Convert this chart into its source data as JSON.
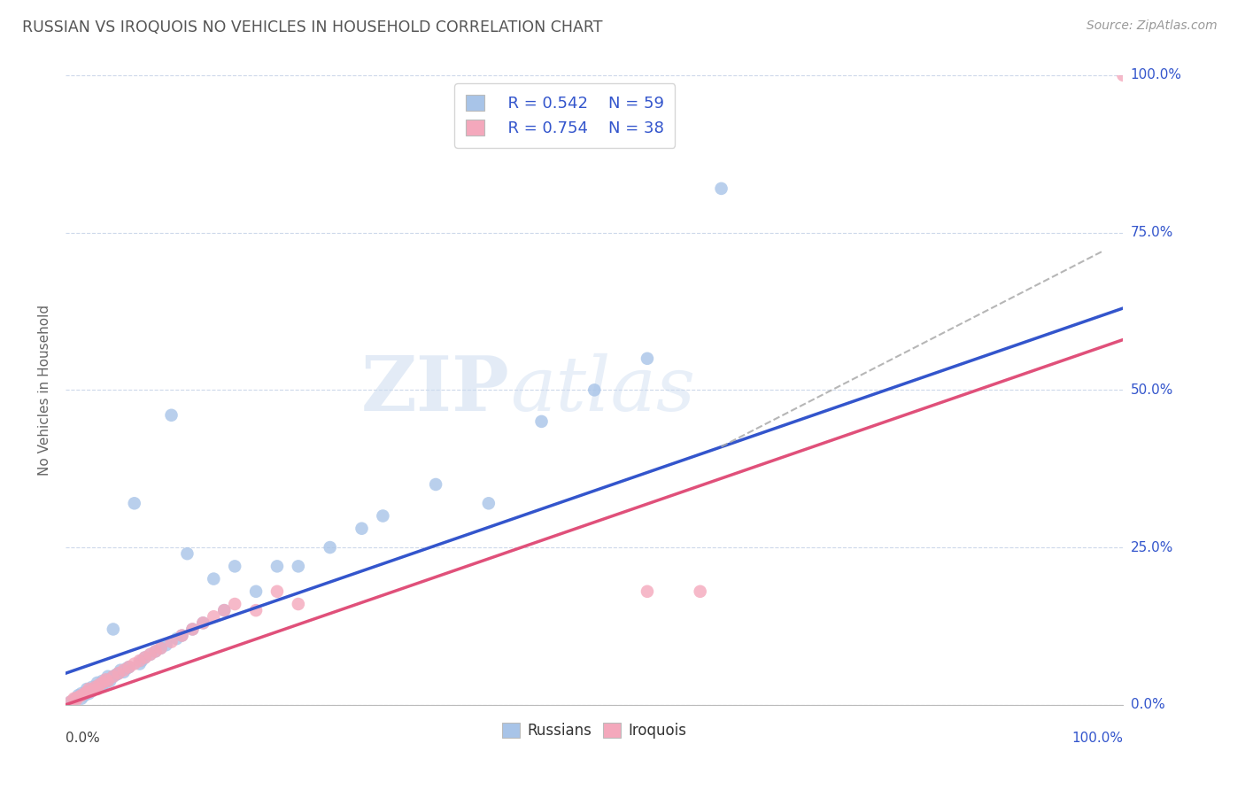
{
  "title": "RUSSIAN VS IROQUOIS NO VEHICLES IN HOUSEHOLD CORRELATION CHART",
  "source": "Source: ZipAtlas.com",
  "ylabel": "No Vehicles in Household",
  "xlim": [
    0,
    1.0
  ],
  "ylim": [
    0,
    1.0
  ],
  "ytick_labels": [
    "0.0%",
    "25.0%",
    "50.0%",
    "75.0%",
    "100.0%"
  ],
  "ytick_positions": [
    0.0,
    0.25,
    0.5,
    0.75,
    1.0
  ],
  "russian_color": "#a8c4e8",
  "iroquois_color": "#f4a8bc",
  "russian_line_color": "#3355cc",
  "iroquois_line_color": "#e0507a",
  "trend_dashed_color": "#aaaaaa",
  "watermark_zip": "ZIP",
  "watermark_atlas": "atlas",
  "legend_r_russian": "R = 0.542",
  "legend_n_russian": "N = 59",
  "legend_r_iroquois": "R = 0.754",
  "legend_n_iroquois": "N = 38",
  "background_color": "#ffffff",
  "grid_color": "#c8d4e8",
  "russians_x": [
    0.005,
    0.008,
    0.01,
    0.012,
    0.015,
    0.015,
    0.018,
    0.02,
    0.02,
    0.022,
    0.025,
    0.025,
    0.028,
    0.03,
    0.03,
    0.032,
    0.035,
    0.035,
    0.038,
    0.04,
    0.04,
    0.042,
    0.045,
    0.045,
    0.048,
    0.05,
    0.052,
    0.055,
    0.058,
    0.06,
    0.065,
    0.07,
    0.072,
    0.075,
    0.08,
    0.085,
    0.09,
    0.095,
    0.1,
    0.105,
    0.11,
    0.115,
    0.12,
    0.13,
    0.14,
    0.15,
    0.16,
    0.18,
    0.2,
    0.22,
    0.25,
    0.28,
    0.3,
    0.35,
    0.4,
    0.45,
    0.5,
    0.55,
    0.62
  ],
  "russians_y": [
    0.005,
    0.008,
    0.01,
    0.015,
    0.01,
    0.018,
    0.015,
    0.02,
    0.025,
    0.018,
    0.022,
    0.028,
    0.025,
    0.03,
    0.035,
    0.028,
    0.032,
    0.038,
    0.035,
    0.04,
    0.045,
    0.038,
    0.12,
    0.045,
    0.048,
    0.05,
    0.055,
    0.052,
    0.058,
    0.06,
    0.32,
    0.065,
    0.07,
    0.075,
    0.08,
    0.085,
    0.09,
    0.095,
    0.46,
    0.105,
    0.11,
    0.24,
    0.12,
    0.13,
    0.2,
    0.15,
    0.22,
    0.18,
    0.22,
    0.22,
    0.25,
    0.28,
    0.3,
    0.35,
    0.32,
    0.45,
    0.5,
    0.55,
    0.82
  ],
  "iroquois_x": [
    0.005,
    0.008,
    0.01,
    0.012,
    0.015,
    0.018,
    0.02,
    0.022,
    0.025,
    0.028,
    0.03,
    0.032,
    0.035,
    0.038,
    0.04,
    0.045,
    0.05,
    0.055,
    0.06,
    0.065,
    0.07,
    0.075,
    0.08,
    0.085,
    0.09,
    0.1,
    0.11,
    0.12,
    0.13,
    0.14,
    0.15,
    0.16,
    0.18,
    0.2,
    0.22,
    0.55,
    0.6,
    1.0
  ],
  "iroquois_y": [
    0.005,
    0.01,
    0.008,
    0.012,
    0.015,
    0.018,
    0.02,
    0.025,
    0.022,
    0.028,
    0.025,
    0.032,
    0.035,
    0.04,
    0.038,
    0.045,
    0.05,
    0.055,
    0.06,
    0.065,
    0.07,
    0.075,
    0.08,
    0.085,
    0.09,
    0.1,
    0.11,
    0.12,
    0.13,
    0.14,
    0.15,
    0.16,
    0.15,
    0.18,
    0.16,
    0.18,
    0.18,
    1.0
  ],
  "russian_line_intercept": 0.05,
  "russian_line_slope": 0.58,
  "iroquois_line_intercept": 0.0,
  "iroquois_line_slope": 0.58,
  "dashed_line_start_x": 0.62,
  "dashed_line_end_x": 0.98,
  "dashed_line_start_y": 0.41,
  "dashed_line_end_y": 0.72
}
